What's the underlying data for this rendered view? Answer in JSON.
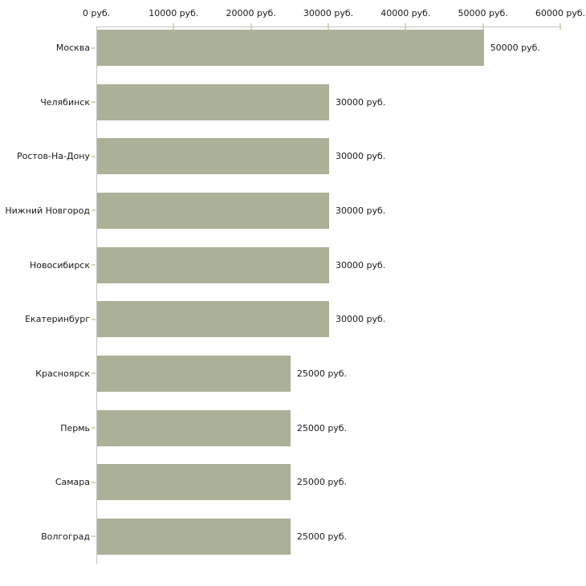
{
  "chart_data": {
    "type": "bar",
    "orientation": "horizontal",
    "title": "",
    "categories": [
      "Москва",
      "Челябинск",
      "Ростов-На-Дону",
      "Нижний Новгород",
      "Новосибирск",
      "Екатеринбург",
      "Красноярск",
      "Пермь",
      "Самара",
      "Волгоград"
    ],
    "values": [
      50000,
      30000,
      30000,
      30000,
      30000,
      30000,
      25000,
      25000,
      25000,
      25000
    ],
    "value_labels": [
      "50000 руб.",
      "30000 руб.",
      "30000 руб.",
      "30000 руб.",
      "30000 руб.",
      "30000 руб.",
      "25000 руб.",
      "25000 руб.",
      "25000 руб.",
      "25000 руб."
    ],
    "x_ticks": [
      0,
      10000,
      20000,
      30000,
      40000,
      50000,
      60000
    ],
    "x_tick_labels": [
      "0 руб.",
      "10000 руб.",
      "20000 руб.",
      "30000 руб.",
      "40000 руб.",
      "50000 руб.",
      "60000 руб."
    ],
    "xlim": [
      0,
      60000
    ],
    "unit": "руб.",
    "grid": false,
    "legend_position": "none",
    "colors": {
      "bar_fill": "#aab197",
      "axis_line": "#c5c5c5",
      "tick_mark": "#d9d6b4",
      "text": "#1a1a1a",
      "background": "#ffffff"
    }
  }
}
